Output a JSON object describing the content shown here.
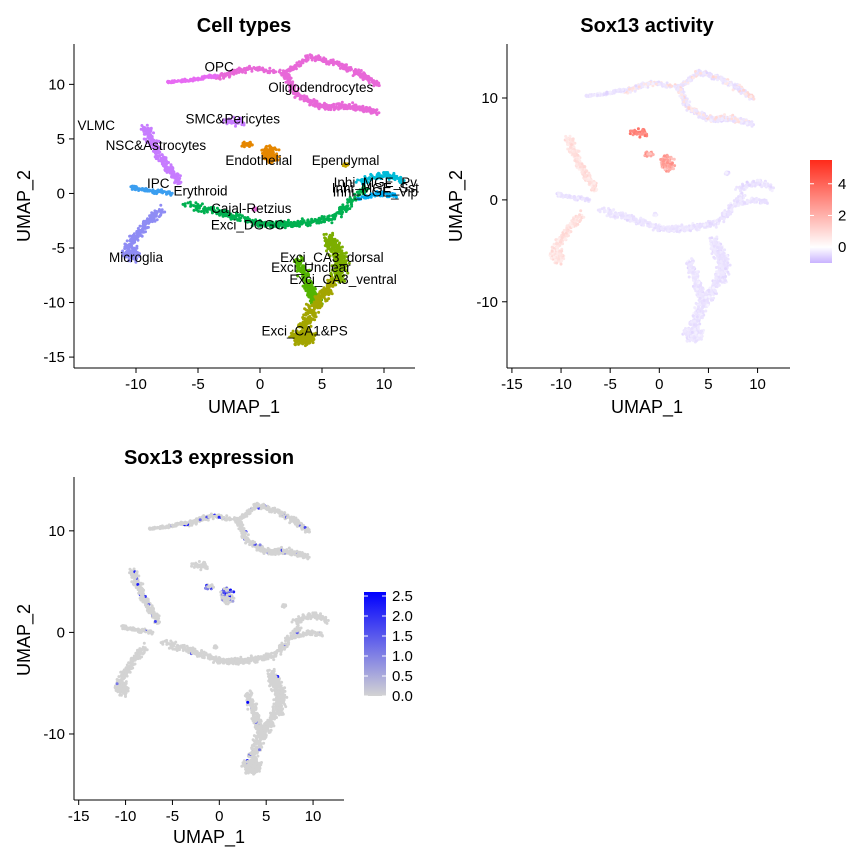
{
  "chart_data": [
    {
      "type": "scatter",
      "title": "Cell types",
      "xlabel": "UMAP_1",
      "ylabel": "UMAP_2",
      "xlim": [
        -15,
        12.5
      ],
      "ylim": [
        -16,
        13.7
      ],
      "xticks": [
        -10,
        -5,
        0,
        5,
        10
      ],
      "yticks": [
        -15,
        -10,
        -5,
        0,
        5,
        10
      ],
      "grid": false,
      "colored_by": "cluster",
      "clusters": [
        {
          "label": "OPC",
          "x": -3.3,
          "y": 11.2,
          "color": "#e868d8"
        },
        {
          "label": "Oligodendrocytes",
          "x": 4.9,
          "y": 9.3,
          "color": "#e868d8"
        },
        {
          "label": "VLMC",
          "x": -13.2,
          "y": 5.8,
          "color": "#f8766d"
        },
        {
          "label": "SMC&Pericytes",
          "x": -2.2,
          "y": 6.4,
          "color": "#c77cff"
        },
        {
          "label": "NSC&Astrocytes",
          "x": -8.4,
          "y": 4.0,
          "color": "#c77cff"
        },
        {
          "label": "Endothelial",
          "x": -0.1,
          "y": 2.6,
          "color": "#e58700"
        },
        {
          "label": "Ependymal",
          "x": 6.9,
          "y": 2.6,
          "color": "#c9a900"
        },
        {
          "label": "IPC",
          "x": -8.2,
          "y": 0.5,
          "color": "#3b9ef0"
        },
        {
          "label": "Erythroid",
          "x": -4.8,
          "y": -0.2,
          "color": "#ff61c3"
        },
        {
          "label": "Inhi_MGE_Pv",
          "x": 9.3,
          "y": 0.6,
          "color": "#00bcd8"
        },
        {
          "label": "Inhi_MGE_Sst",
          "x": 9.3,
          "y": 0.1,
          "color": "#00b0f6"
        },
        {
          "label": "Inhi_CGE_Vip",
          "x": 9.3,
          "y": -0.3,
          "color": "#00a9ff"
        },
        {
          "label": "Cajal-Retzius",
          "x": -0.7,
          "y": -1.8,
          "color": "#e76bf3"
        },
        {
          "label": "Exci_DGGC",
          "x": -1.0,
          "y": -3.3,
          "color": "#00b050"
        },
        {
          "label": "Microglia",
          "x": -10.0,
          "y": -6.3,
          "color": "#8f8cf4"
        },
        {
          "label": "Exci_CA3_dorsal",
          "x": 5.8,
          "y": -6.3,
          "color": "#7cae00"
        },
        {
          "label": "Exci_Unclear",
          "x": 4.1,
          "y": -7.2,
          "color": "#53b400"
        },
        {
          "label": "Exci_CA3_ventral",
          "x": 6.7,
          "y": -8.3,
          "color": "#a3a500"
        },
        {
          "label": "Exci_CA1&PS",
          "x": 3.6,
          "y": -13.0,
          "color": "#a3a500"
        }
      ]
    },
    {
      "type": "scatter",
      "title": "Sox13 activity",
      "xlabel": "UMAP_1",
      "ylabel": "UMAP_2",
      "xlim": [
        -15.5,
        13.3
      ],
      "ylim": [
        -16.5,
        15.3
      ],
      "xticks": [
        -15,
        -10,
        -5,
        0,
        5,
        10
      ],
      "yticks": [
        -10,
        0,
        10
      ],
      "grid": false,
      "colored_by": "activity",
      "color_scale": {
        "low": "#c9b3ff",
        "mid": "#ffffff",
        "high": "#ff2a1a",
        "min": -1.0,
        "max": 5.5
      },
      "legend_ticks": [
        "4",
        "2",
        "0"
      ],
      "legend_tick_values": [
        4,
        2,
        0
      ],
      "legend_position": "right"
    },
    {
      "type": "scatter",
      "title": "Sox13 expression",
      "xlabel": "UMAP_1",
      "ylabel": "UMAP_2",
      "xlim": [
        -15.5,
        13.3
      ],
      "ylim": [
        -16.5,
        15.3
      ],
      "xticks": [
        -15,
        -10,
        -5,
        0,
        5,
        10
      ],
      "yticks": [
        -10,
        0,
        10
      ],
      "grid": false,
      "colored_by": "expression",
      "color_scale": {
        "low": "#d3d3d3",
        "high": "#0000ff",
        "min": 0,
        "max": 2.6
      },
      "legend_ticks": [
        "2.5",
        "2.0",
        "1.5",
        "1.0",
        "0.5",
        "0.0"
      ],
      "legend_tick_values": [
        2.5,
        2.0,
        1.5,
        1.0,
        0.5,
        0.0
      ],
      "legend_position": "right"
    }
  ]
}
